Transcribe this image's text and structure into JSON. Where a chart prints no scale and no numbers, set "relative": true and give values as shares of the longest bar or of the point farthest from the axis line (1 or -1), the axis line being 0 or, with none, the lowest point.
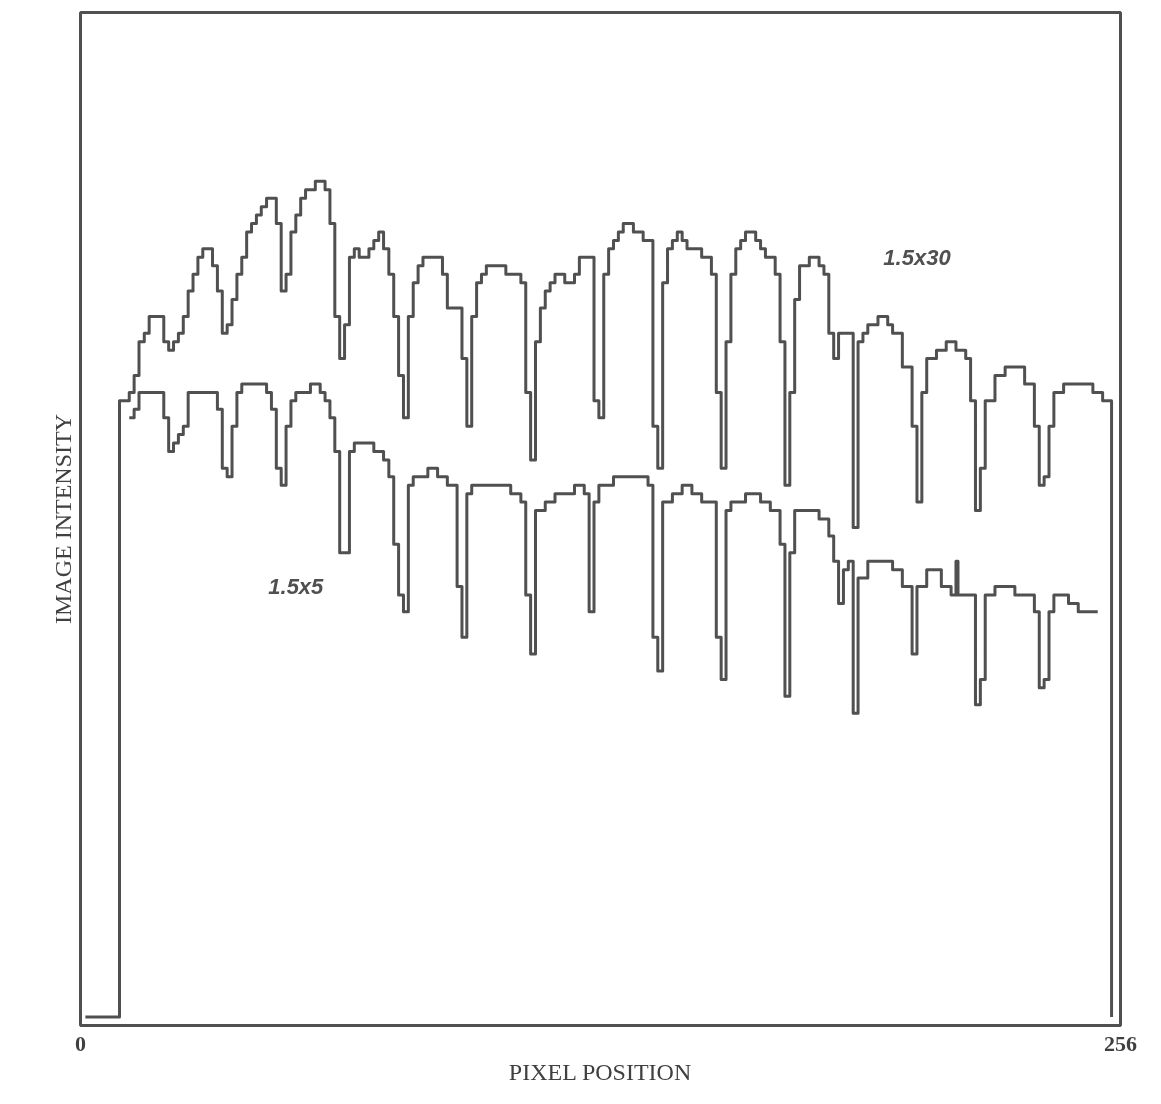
{
  "chart_data": {
    "type": "step",
    "xlabel": "PIXEL POSITION",
    "ylabel": "IMAGE INTENSITY",
    "relative": true,
    "xlim": [
      0,
      256
    ],
    "xticks": [
      0,
      256
    ],
    "marker": "none",
    "line_style": "solid",
    "series": [
      {
        "name": "1.5x30",
        "color": "#505050",
        "x": [
          1.2,
          8.4,
          9.6,
          12.0,
          13.2,
          14.4,
          15.7,
          16.9,
          18.1,
          19.3,
          20.5,
          21.7,
          22.9,
          24.1,
          25.3,
          26.5,
          27.7,
          28.9,
          30.1,
          31.3,
          32.5,
          33.7,
          34.9,
          36.1,
          37.3,
          38.5,
          39.7,
          40.9,
          42.1,
          43.3,
          44.5,
          45.8,
          47.0,
          48.2,
          49.4,
          50.6,
          51.8,
          53.0,
          54.2,
          55.4,
          56.6,
          57.8,
          59.0,
          60.2,
          61.4,
          62.6,
          63.8,
          65.0,
          66.2,
          67.4,
          68.6,
          69.8,
          71.0,
          72.2,
          73.4,
          74.6,
          75.9,
          77.1,
          78.3,
          79.5,
          80.7,
          81.9,
          83.1,
          84.3,
          85.5,
          86.7,
          87.9,
          89.1,
          90.3,
          93.9,
          95.1,
          96.3,
          97.5,
          98.7,
          99.9,
          101.1,
          102.3,
          103.5,
          104.7,
          107.2,
          108.4,
          109.6,
          110.8,
          112.0,
          113.2,
          114.4,
          115.6,
          116.8,
          118.0,
          119.2,
          120.4,
          121.6,
          122.8,
          124.0,
          125.2,
          126.4,
          127.6,
          128.8,
          130.0,
          131.2,
          132.4,
          133.6,
          134.8,
          136.1,
          137.3,
          138.5,
          140.9,
          142.1,
          143.3,
          144.5,
          145.7,
          146.9,
          148.1,
          149.3,
          150.5,
          152.9,
          155.3,
          156.5,
          157.7,
          158.9,
          160.1,
          161.3,
          162.5,
          163.7,
          164.9,
          166.2,
          167.4,
          168.6,
          171.0,
          172.2,
          173.4,
          174.6,
          175.8,
          177.0,
          179.4,
          181.8,
          183.0,
          184.2,
          185.4,
          186.6,
          189.0,
          190.2,
          191.4,
          192.6,
          193.8,
          196.3,
          198.7,
          199.9,
          202.3,
          204.7,
          205.9,
          207.1,
          208.3,
          210.7,
          213.1,
          215.5,
          217.9,
          219.1,
          220.3,
          221.5,
          222.7,
          225.1,
          227.6,
          230.0,
          232.4,
          234.8,
          236.0,
          237.2,
          238.4,
          239.6,
          242.0,
          244.4,
          246.8,
          249.2,
          251.6,
          253.6,
          253.8
        ],
        "values": [
          0.01,
          0.01,
          0.74,
          0.75,
          0.77,
          0.81,
          0.82,
          0.84,
          0.84,
          0.84,
          0.81,
          0.8,
          0.81,
          0.82,
          0.84,
          0.87,
          0.89,
          0.91,
          0.92,
          0.92,
          0.9,
          0.87,
          0.82,
          0.83,
          0.86,
          0.89,
          0.91,
          0.94,
          0.95,
          0.96,
          0.97,
          0.98,
          0.98,
          0.95,
          0.87,
          0.89,
          0.94,
          0.96,
          0.98,
          0.99,
          0.99,
          1.0,
          1.0,
          0.99,
          0.95,
          0.84,
          0.79,
          0.83,
          0.91,
          0.92,
          0.91,
          0.91,
          0.92,
          0.93,
          0.94,
          0.92,
          0.89,
          0.84,
          0.77,
          0.72,
          0.84,
          0.88,
          0.9,
          0.91,
          0.91,
          0.91,
          0.91,
          0.89,
          0.85,
          0.79,
          0.71,
          0.84,
          0.88,
          0.89,
          0.9,
          0.9,
          0.9,
          0.9,
          0.89,
          0.89,
          0.88,
          0.75,
          0.67,
          0.81,
          0.85,
          0.87,
          0.88,
          0.89,
          0.89,
          0.88,
          0.88,
          0.89,
          0.91,
          0.91,
          0.91,
          0.74,
          0.72,
          0.89,
          0.92,
          0.93,
          0.94,
          0.95,
          0.95,
          0.94,
          0.94,
          0.93,
          0.71,
          0.66,
          0.88,
          0.92,
          0.93,
          0.94,
          0.93,
          0.92,
          0.92,
          0.91,
          0.89,
          0.75,
          0.66,
          0.81,
          0.89,
          0.92,
          0.93,
          0.94,
          0.94,
          0.93,
          0.92,
          0.91,
          0.89,
          0.81,
          0.64,
          0.75,
          0.86,
          0.9,
          0.91,
          0.9,
          0.89,
          0.82,
          0.79,
          0.82,
          0.82,
          0.59,
          0.81,
          0.82,
          0.83,
          0.84,
          0.83,
          0.82,
          0.78,
          0.71,
          0.62,
          0.75,
          0.79,
          0.8,
          0.81,
          0.8,
          0.79,
          0.74,
          0.61,
          0.66,
          0.74,
          0.77,
          0.78,
          0.78,
          0.76,
          0.71,
          0.64,
          0.65,
          0.71,
          0.75,
          0.76,
          0.76,
          0.76,
          0.75,
          0.74,
          0.74,
          0.01
        ]
      },
      {
        "name": "1.5x5",
        "color": "#505050",
        "x": [
          12.0,
          13.2,
          14.4,
          15.7,
          18.1,
          19.3,
          20.5,
          21.7,
          22.9,
          24.1,
          25.3,
          26.5,
          27.7,
          31.3,
          32.5,
          33.7,
          34.9,
          36.1,
          37.3,
          38.5,
          39.7,
          43.3,
          45.8,
          47.0,
          48.2,
          49.4,
          50.6,
          51.8,
          53.0,
          56.6,
          59.0,
          60.2,
          61.4,
          62.6,
          63.8,
          65.0,
          66.2,
          67.4,
          69.8,
          72.2,
          74.6,
          75.9,
          77.1,
          78.3,
          79.5,
          80.7,
          81.9,
          85.5,
          87.9,
          90.3,
          92.7,
          93.9,
          95.1,
          96.3,
          99.9,
          103.5,
          105.9,
          108.4,
          109.6,
          110.8,
          112.0,
          114.4,
          116.8,
          119.2,
          121.6,
          122.8,
          124.0,
          125.2,
          126.4,
          127.6,
          131.2,
          134.8,
          137.3,
          139.7,
          140.9,
          142.1,
          143.3,
          145.7,
          148.1,
          150.5,
          152.9,
          155.3,
          156.5,
          157.7,
          158.9,
          160.1,
          163.7,
          167.4,
          169.8,
          172.2,
          173.4,
          174.6,
          175.8,
          179.4,
          181.8,
          184.2,
          185.4,
          186.6,
          187.8,
          189.0,
          190.2,
          191.4,
          193.8,
          196.3,
          199.9,
          202.3,
          204.7,
          205.9,
          208.3,
          211.9,
          214.3,
          215.5,
          216.0,
          219.1,
          220.3,
          221.5,
          222.7,
          225.1,
          227.6,
          230.0,
          234.8,
          236.0,
          237.2,
          238.4,
          239.6,
          243.2,
          245.6,
          248.0,
          250.4
        ],
        "values": [
          0.72,
          0.73,
          0.75,
          0.75,
          0.75,
          0.75,
          0.72,
          0.68,
          0.69,
          0.7,
          0.71,
          0.75,
          0.75,
          0.75,
          0.75,
          0.73,
          0.66,
          0.65,
          0.71,
          0.75,
          0.76,
          0.76,
          0.75,
          0.73,
          0.66,
          0.64,
          0.71,
          0.74,
          0.75,
          0.76,
          0.75,
          0.74,
          0.72,
          0.68,
          0.56,
          0.56,
          0.68,
          0.69,
          0.69,
          0.68,
          0.67,
          0.65,
          0.57,
          0.51,
          0.49,
          0.64,
          0.65,
          0.66,
          0.65,
          0.64,
          0.52,
          0.46,
          0.63,
          0.64,
          0.64,
          0.64,
          0.63,
          0.62,
          0.51,
          0.44,
          0.61,
          0.62,
          0.63,
          0.63,
          0.64,
          0.64,
          0.63,
          0.49,
          0.62,
          0.64,
          0.65,
          0.65,
          0.65,
          0.64,
          0.46,
          0.42,
          0.62,
          0.63,
          0.64,
          0.63,
          0.62,
          0.62,
          0.46,
          0.41,
          0.61,
          0.62,
          0.63,
          0.62,
          0.61,
          0.57,
          0.39,
          0.56,
          0.61,
          0.61,
          0.6,
          0.58,
          0.55,
          0.5,
          0.54,
          0.55,
          0.37,
          0.53,
          0.55,
          0.55,
          0.54,
          0.52,
          0.44,
          0.52,
          0.54,
          0.52,
          0.51,
          0.55,
          0.51,
          0.51,
          0.38,
          0.41,
          0.51,
          0.52,
          0.52,
          0.51,
          0.49,
          0.4,
          0.41,
          0.49,
          0.51,
          0.5,
          0.49,
          0.49,
          0.49
        ]
      }
    ]
  }
}
